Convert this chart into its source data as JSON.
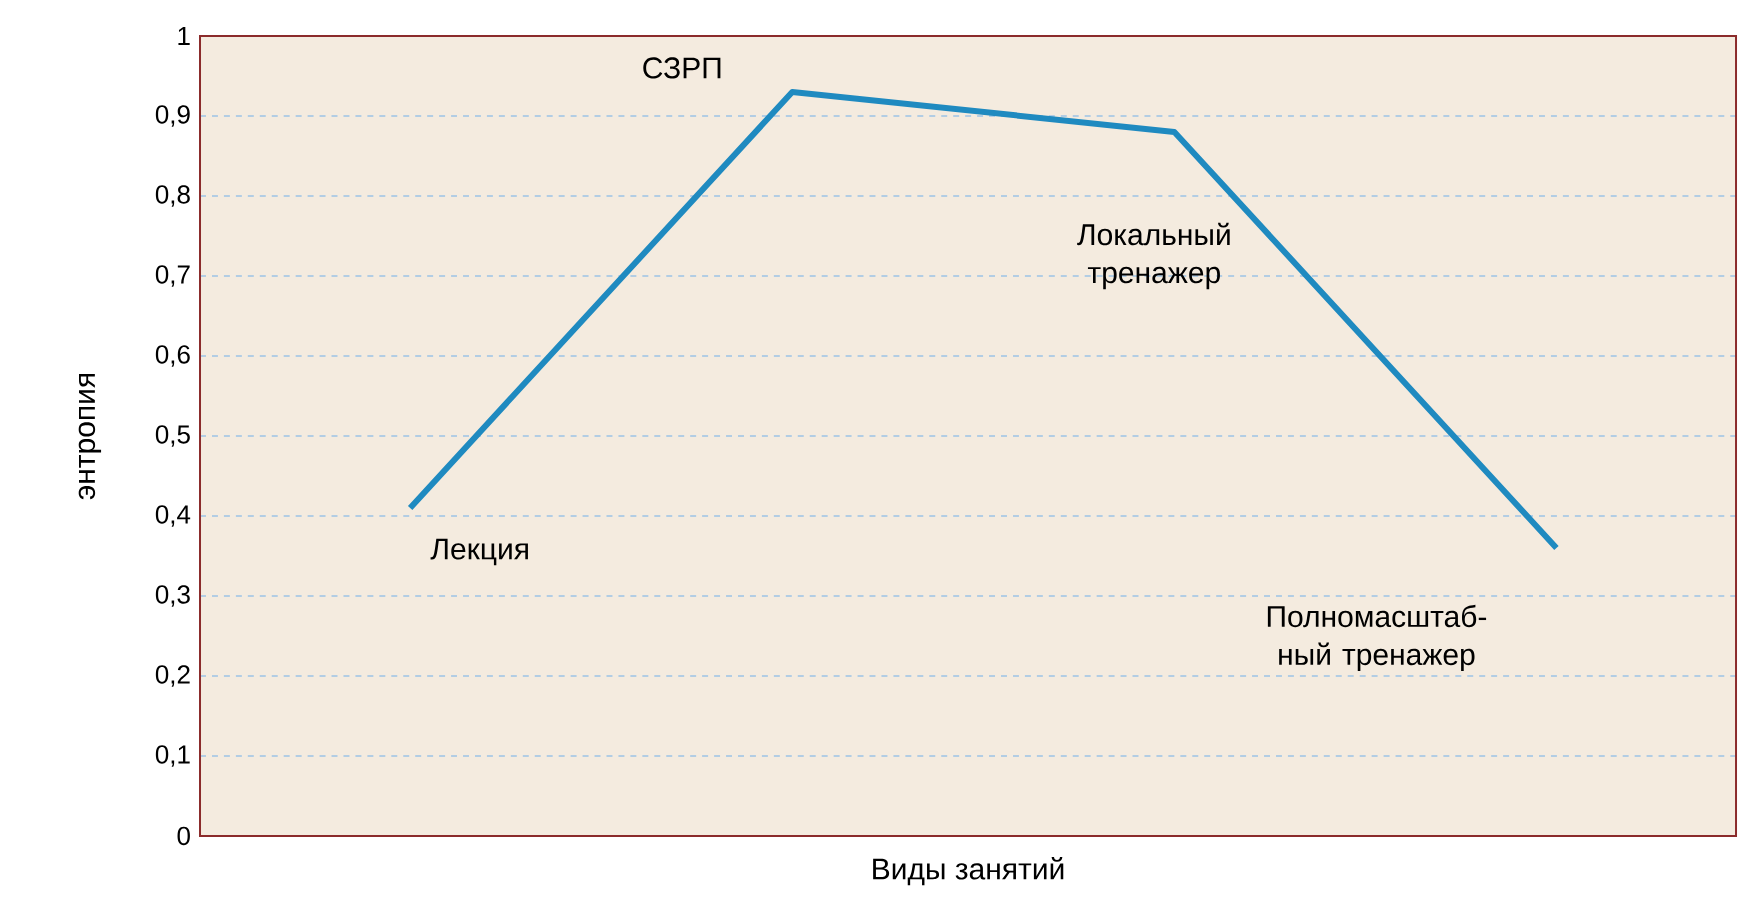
{
  "chart_data": {
    "type": "line",
    "xlabel": "Виды занятий",
    "ylabel": "энтропия",
    "categories": [
      null,
      null,
      null,
      null
    ],
    "series": [
      {
        "color": "#1f8ac0",
        "values": [
          0.41,
          0.93,
          0.88,
          0.36
        ]
      }
    ],
    "annotations": [
      "Лекция",
      "СЗРП",
      "Локальный тренажер",
      "Полномасштаб-ный тренажер"
    ],
    "ylim": [
      0,
      1
    ],
    "yticks": [
      0,
      {
        "value": 0.1,
        "label": "0,1"
      },
      {
        "value": 0.2,
        "label": "0,2"
      },
      {
        "value": 0.3,
        "label": "0,3"
      },
      {
        "value": 0.4,
        "label": "0,4"
      },
      {
        "value": 0.5,
        "label": "0,5"
      },
      {
        "value": 0.6,
        "label": "0,6"
      },
      {
        "value": 0.7,
        "label": "0,7"
      },
      {
        "value": 0.8,
        "label": "0,8"
      },
      {
        "value": 0.9,
        "label": "0,9"
      },
      1
    ],
    "grid": "y",
    "marker": "none",
    "line_style": "solid"
  }
}
